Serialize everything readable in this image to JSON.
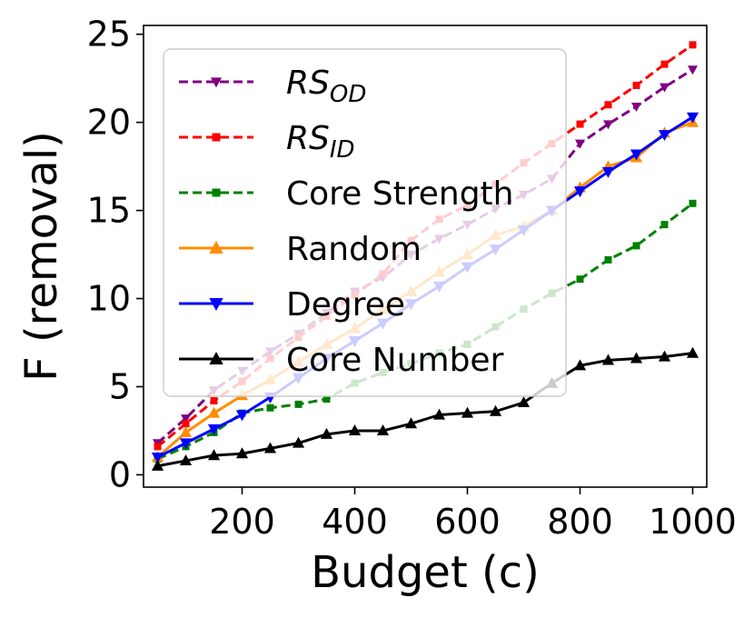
{
  "chart_data": {
    "type": "line",
    "title": "",
    "xlabel": "Budget (c)",
    "ylabel": "F (removal)",
    "xlim": [
      25,
      1025
    ],
    "ylim": [
      -0.7,
      25.5
    ],
    "xticks": [
      200,
      400,
      600,
      800,
      1000
    ],
    "yticks": [
      0,
      5,
      10,
      15,
      20,
      25
    ],
    "x": [
      50,
      100,
      150,
      200,
      250,
      300,
      350,
      400,
      450,
      500,
      550,
      600,
      650,
      700,
      750,
      800,
      850,
      900,
      950,
      1000
    ],
    "legend_position": "upper-left",
    "series": [
      {
        "name": "RS_OD",
        "legend_main": "RS",
        "legend_sub": "OD",
        "color": "#800080",
        "marker": "triangle-down",
        "dashed": true,
        "values": [
          1.8,
          3.2,
          4.8,
          5.9,
          7.0,
          8.0,
          9.2,
          10.4,
          11.2,
          12.5,
          13.4,
          14.2,
          15.1,
          15.9,
          16.8,
          18.8,
          19.9,
          20.9,
          22.0,
          23.0
        ]
      },
      {
        "name": "RS_ID",
        "legend_main": "RS",
        "legend_sub": "ID",
        "color": "#ff0000",
        "marker": "square",
        "dashed": true,
        "values": [
          1.6,
          2.9,
          4.2,
          5.3,
          6.6,
          7.8,
          9.0,
          10.2,
          11.4,
          13.3,
          14.5,
          15.3,
          16.5,
          17.7,
          18.8,
          19.9,
          21.0,
          22.1,
          23.3,
          24.4
        ]
      },
      {
        "name": "Core Strength",
        "legend_main": "Core Strength",
        "legend_sub": "",
        "color": "#008000",
        "marker": "square",
        "dashed": true,
        "values": [
          0.9,
          1.6,
          2.4,
          3.5,
          3.8,
          4.0,
          4.3,
          5.2,
          5.8,
          6.3,
          6.9,
          7.4,
          8.4,
          9.4,
          10.3,
          11.1,
          12.2,
          13.0,
          14.2,
          15.4
        ]
      },
      {
        "name": "Random",
        "legend_main": "Random",
        "legend_sub": "",
        "color": "#ff8c00",
        "marker": "triangle-up",
        "dashed": false,
        "values": [
          1.0,
          2.4,
          3.5,
          4.5,
          5.4,
          6.4,
          7.4,
          8.3,
          9.4,
          10.4,
          11.5,
          12.5,
          13.6,
          14.1,
          15.0,
          16.3,
          17.5,
          18.0,
          19.4,
          20.0
        ]
      },
      {
        "name": "Degree",
        "legend_main": "Degree",
        "legend_sub": "",
        "color": "#0000ff",
        "marker": "triangle-down",
        "dashed": false,
        "values": [
          1.0,
          1.8,
          2.6,
          3.4,
          4.4,
          5.5,
          6.6,
          7.6,
          8.6,
          9.7,
          10.7,
          11.8,
          12.8,
          13.9,
          15.0,
          16.1,
          17.2,
          18.2,
          19.3,
          20.3
        ]
      },
      {
        "name": "Core Number",
        "legend_main": "Core Number",
        "legend_sub": "",
        "color": "#000000",
        "marker": "triangle-up",
        "dashed": false,
        "values": [
          0.5,
          0.8,
          1.1,
          1.2,
          1.5,
          1.8,
          2.3,
          2.5,
          2.5,
          2.9,
          3.4,
          3.5,
          3.6,
          4.1,
          5.2,
          6.2,
          6.5,
          6.6,
          6.7,
          6.9
        ]
      }
    ]
  }
}
